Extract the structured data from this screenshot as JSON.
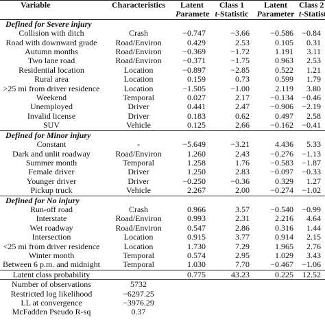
{
  "table": {
    "header": {
      "row1": [
        "Variable",
        "Characteristics",
        "Latent",
        "Class 1",
        "Latent",
        "Class 2"
      ],
      "row2": [
        "Parameter",
        "t-Statistic",
        "Parameter",
        "t-Statistic"
      ]
    },
    "sections": [
      {
        "title": "Defined for Severe injury",
        "rows": [
          [
            "Collision with ditch",
            "Crash",
            "−0.747",
            "−3.66",
            "−0.586",
            "−0.84"
          ],
          [
            "Road with downward grade",
            "Road/Environ",
            "0.429",
            "2.53",
            "0.105",
            "0.31"
          ],
          [
            "Autumn months",
            "Road/Environ",
            "−0.369",
            "−1.72",
            "1.191",
            "3.11"
          ],
          [
            "Two lane road",
            "Road/Environ",
            "−0.371",
            "−1.75",
            "0.963",
            "2.53"
          ],
          [
            "Residential location",
            "Location",
            "−0.897",
            "−2.85",
            "0.522",
            "1.21"
          ],
          [
            "Rural area",
            "Location",
            "0.159",
            "0.73",
            "0.599",
            "1.79"
          ],
          [
            ">25 mi from driver residence",
            "Location",
            "−1.505",
            "−1.00",
            "2.119",
            "3.80"
          ],
          [
            "Weekend",
            "Temporal",
            "0.027",
            "2.17",
            "−0.134",
            "−0.46"
          ],
          [
            "Unemployed",
            "Driver",
            "0.441",
            "2.47",
            "−0.906",
            "−2.19"
          ],
          [
            "Invalid license",
            "Driver",
            "0.183",
            "0.62",
            "0.497",
            "2.58"
          ],
          [
            "SUV",
            "Vehicle",
            "0.125",
            "2.66",
            "−0.162",
            "−0.41"
          ]
        ]
      },
      {
        "title": "Defined for Minor injury",
        "rows": [
          [
            "Constant",
            "-",
            "−5.649",
            "−3.21",
            "4.436",
            "5.33"
          ],
          [
            "Dark and unlit roadway",
            "Road/Environ",
            "1.260",
            "2.43",
            "−0.276",
            "−1.13"
          ],
          [
            "Summer month",
            "Temporal",
            "1.258",
            "1.76",
            "−0.583",
            "−1.87"
          ],
          [
            "Female driver",
            "Driver",
            "1.250",
            "2.83",
            "−0.097",
            "−0.33"
          ],
          [
            "Younger driver",
            "Driver",
            "−0.250",
            "−0.36",
            "0.329",
            "1.27"
          ],
          [
            "Pickup truck",
            "Vehicle",
            "2.267",
            "2.00",
            "−0.274",
            "−1.02"
          ]
        ]
      },
      {
        "title": "Defined for No injury",
        "rows": [
          [
            "Run-off road",
            "Crash",
            "0.966",
            "3.57",
            "−0.540",
            "−0.99"
          ],
          [
            "Interstate",
            "Road/Environ",
            "0.993",
            "2.31",
            "2.216",
            "4.64"
          ],
          [
            "Wet roadway",
            "Road/Environ",
            "0.547",
            "2.86",
            "0.316",
            "1.44"
          ],
          [
            "Intersection",
            "Location",
            "0.915",
            "3.77",
            "0.914",
            "2.15"
          ],
          [
            "<25 mi from driver residence",
            "Location",
            "1.730",
            "7.29",
            "1.965",
            "2.76"
          ],
          [
            "Winter month",
            "Temporal",
            "0.574",
            "2.95",
            "1.029",
            "3.43"
          ],
          [
            "Between 6 p.m. and midnight",
            "Temporal",
            "1.030",
            "7.70",
            "−0.467",
            "−1.06"
          ]
        ]
      }
    ],
    "latent_class_probability": {
      "label": "Latent class probability",
      "values": [
        "0.775",
        "43.23",
        "0.225",
        "12.52"
      ]
    },
    "statistics": [
      [
        "Number of observations",
        "5732"
      ],
      [
        "Restricted log likelihood",
        "−6297.25"
      ],
      [
        "LL at convergence",
        "−3976.29"
      ],
      [
        "McFadden Pseudo R-sq",
        "0.37"
      ]
    ]
  }
}
